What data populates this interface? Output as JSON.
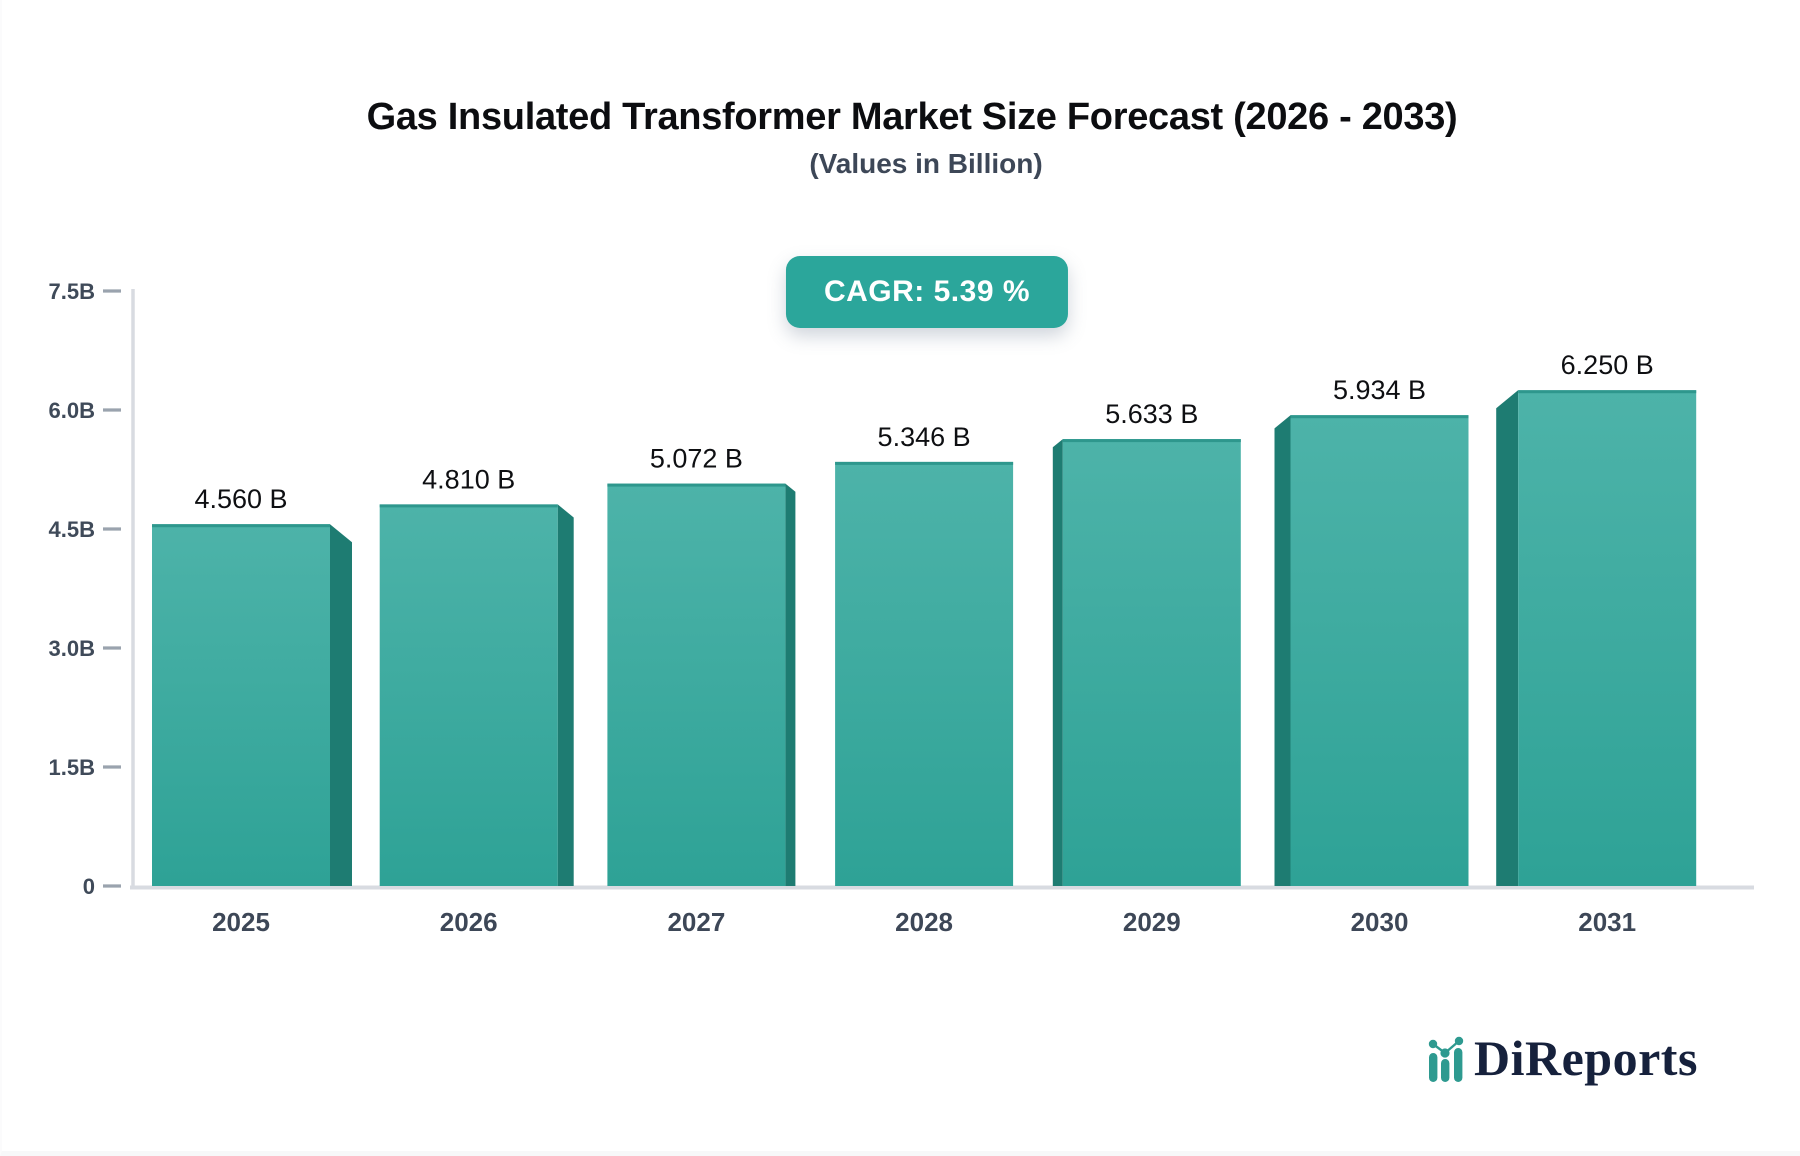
{
  "header": {
    "title": "Gas Insulated Transformer Market Size Forecast (2026 - 2033)",
    "subtitle": "(Values in Billion)",
    "cagr_badge": "CAGR: 5.39 %"
  },
  "chart_data": {
    "type": "bar",
    "title": "Gas Insulated Transformer Market Size Forecast (2026 - 2033)",
    "subtitle": "(Values in Billion)",
    "annotation": "CAGR: 5.39 %",
    "categories": [
      "2025",
      "2026",
      "2027",
      "2028",
      "2029",
      "2030",
      "2031"
    ],
    "values": [
      4.56,
      4.81,
      5.072,
      5.346,
      5.633,
      5.934,
      6.25
    ],
    "value_labels": [
      "4.560 B",
      "4.810 B",
      "5.072 B",
      "5.346 B",
      "5.633 B",
      "5.934 B",
      "6.250 B"
    ],
    "unit": "Billion",
    "ylim": [
      0,
      7.5
    ],
    "yticks": [
      {
        "v": 0,
        "label": "0"
      },
      {
        "v": 1.5,
        "label": "1.5B"
      },
      {
        "v": 3.0,
        "label": "3.0B"
      },
      {
        "v": 4.5,
        "label": "4.5B"
      },
      {
        "v": 6.0,
        "label": "6.0B"
      },
      {
        "v": 7.5,
        "label": "7.5B"
      }
    ],
    "grid": false,
    "legend": "none",
    "colors": {
      "bar_top": "#4db3a9",
      "bar_bottom": "#2ea296",
      "bar_edge": "#2e978d",
      "bar_side": "#1e7c72",
      "axis_line": "#d8dbe1",
      "tick_mark": "#9aa3ae",
      "tick_label": "#3f4a59",
      "year_label": "#3d4757",
      "value_label": "#0e0f12",
      "badge_bg": "#2ba69b"
    }
  },
  "branding": {
    "logo_text": "DiReports",
    "logo_icon": "mini-bar-line-chart-icon",
    "logo_color": "#16213c",
    "logo_accent": "#2e9a90"
  }
}
